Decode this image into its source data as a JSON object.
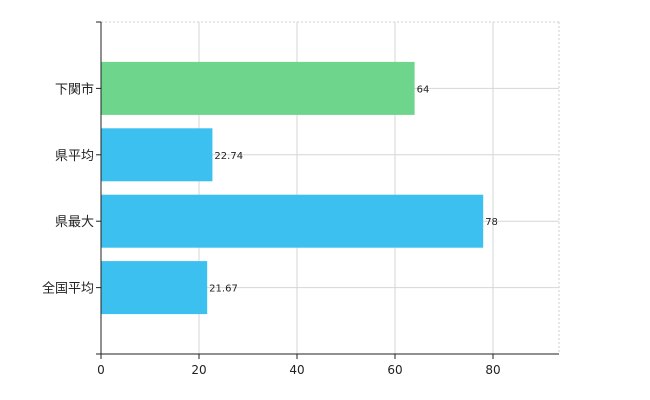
{
  "chart_data": {
    "type": "bar",
    "orientation": "horizontal",
    "categories": [
      "下関市",
      "県平均",
      "県最大",
      "全国平均"
    ],
    "values": [
      64,
      22.74,
      78,
      21.67
    ],
    "value_labels": [
      "64",
      "22.74",
      "78",
      "21.67"
    ],
    "colors": [
      "#6dd58c",
      "#3cc0f0",
      "#3cc0f0",
      "#3cc0f0"
    ],
    "xlim": [
      0,
      93
    ],
    "xticks": [
      0,
      20,
      40,
      60,
      80
    ],
    "xtick_labels": [
      "0",
      "20",
      "40",
      "60",
      "80"
    ],
    "grid": true,
    "title": "",
    "xlabel": "",
    "ylabel": ""
  }
}
